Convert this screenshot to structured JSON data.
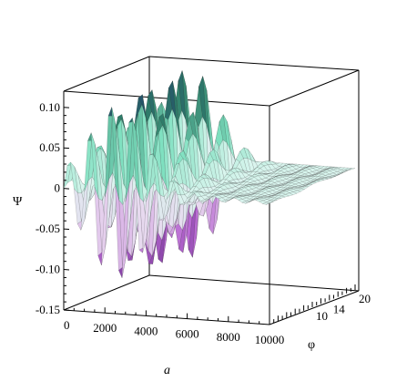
{
  "chart_data": {
    "type": "surface",
    "xlabel": "a",
    "ylabel": "φ",
    "zlabel": "Ψ",
    "xlim": [
      0,
      10000
    ],
    "ylim": [
      0,
      20
    ],
    "zlim": [
      -0.15,
      0.12
    ],
    "x_ticks": [
      "0",
      "2000",
      "4000",
      "6000",
      "8000",
      "10000"
    ],
    "y_ticks": [
      "10",
      "14",
      "20"
    ],
    "z_ticks": [
      "0.10",
      "0.05",
      "0",
      "-0.05",
      "-0.10",
      "-0.15"
    ],
    "grid": false,
    "colormap": [
      "#1e3a68",
      "#2f7f6a",
      "#7fe0c0",
      "#d9f5ee",
      "#e8d7ef",
      "#b96ad3",
      "#6a2a8c"
    ],
    "surface": {
      "description": "Damped oscillation along a: amplitude largest near a≈2000–3000 and decays toward a=10000",
      "peak_max": 0.11,
      "peak_min": -0.11
    }
  }
}
